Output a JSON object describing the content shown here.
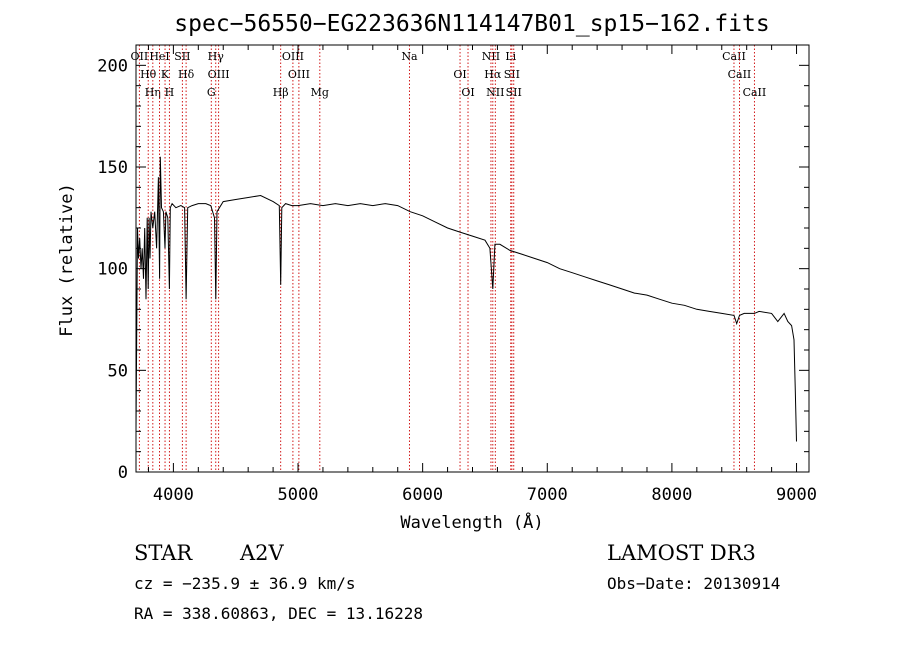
{
  "chart_data": {
    "type": "line",
    "title": "spec−56550−EG223636N114147B01_sp15−162.fits",
    "xlabel": "Wavelength (Å)",
    "ylabel": "Flux (relative)",
    "xlim": [
      3700,
      9100
    ],
    "ylim": [
      0,
      210
    ],
    "xticks": [
      4000,
      5000,
      6000,
      7000,
      8000,
      9000
    ],
    "yticks": [
      0,
      50,
      100,
      150,
      200
    ],
    "grid": false,
    "series": [
      {
        "color": "#000000",
        "x": [
          3700,
          3705,
          3712,
          3720,
          3730,
          3740,
          3750,
          3760,
          3770,
          3780,
          3790,
          3798,
          3805,
          3812,
          3820,
          3835,
          3850,
          3865,
          3880,
          3889,
          3895,
          3905,
          3920,
          3933,
          3940,
          3955,
          3968,
          3975,
          3990,
          4020,
          4060,
          4090,
          4102,
          4115,
          4150,
          4200,
          4260,
          4300,
          4330,
          4340,
          4350,
          4400,
          4500,
          4600,
          4700,
          4800,
          4850,
          4861,
          4870,
          4900,
          4950,
          5000,
          5100,
          5200,
          5300,
          5400,
          5500,
          5600,
          5700,
          5800,
          5900,
          6000,
          6100,
          6200,
          6300,
          6400,
          6500,
          6540,
          6563,
          6580,
          6620,
          6700,
          6800,
          6900,
          7000,
          7100,
          7200,
          7300,
          7400,
          7500,
          7600,
          7700,
          7800,
          7900,
          8000,
          8100,
          8200,
          8300,
          8400,
          8498,
          8520,
          8542,
          8580,
          8662,
          8700,
          8800,
          8850,
          8900,
          8930,
          8960,
          8980,
          8990,
          9000
        ],
        "y": [
          20,
          60,
          120,
          105,
          115,
          100,
          110,
          95,
          120,
          85,
          125,
          90,
          125,
          105,
          128,
          120,
          128,
          110,
          145,
          95,
          155,
          130,
          128,
          110,
          128,
          125,
          90,
          130,
          132,
          130,
          131,
          130,
          85,
          130,
          131,
          132,
          132,
          131,
          125,
          85,
          128,
          133,
          134,
          135,
          136,
          133,
          131,
          92,
          130,
          132,
          131,
          131,
          132,
          131,
          132,
          131,
          132,
          131,
          132,
          131,
          128,
          126,
          123,
          120,
          118,
          116,
          114,
          110,
          90,
          112,
          112,
          109,
          107,
          105,
          103,
          100,
          98,
          96,
          94,
          92,
          90,
          88,
          87,
          85,
          83,
          82,
          80,
          79,
          78,
          77,
          73,
          77,
          78,
          78,
          79,
          78,
          74,
          78,
          74,
          72,
          65,
          40,
          15
        ]
      }
    ],
    "line_ids": [
      {
        "label": "OII",
        "x": 3727
      },
      {
        "label": "Hθ",
        "x": 3798
      },
      {
        "label": "Hη",
        "x": 3835
      },
      {
        "label": "HeI",
        "x": 3889
      },
      {
        "label": "K",
        "x": 3933
      },
      {
        "label": "H",
        "x": 3968
      },
      {
        "label": "SII",
        "x": 4072
      },
      {
        "label": "Hδ",
        "x": 4102
      },
      {
        "label": "G",
        "x": 4304
      },
      {
        "label": "Hγ",
        "x": 4340
      },
      {
        "label": "OIII",
        "x": 4363
      },
      {
        "label": "Hβ",
        "x": 4861
      },
      {
        "label": "OIII",
        "x": 4959
      },
      {
        "label": "OIII",
        "x": 5007
      },
      {
        "label": "Mg",
        "x": 5175
      },
      {
        "label": "Na",
        "x": 5894
      },
      {
        "label": "OI",
        "x": 6300
      },
      {
        "label": "OI",
        "x": 6364
      },
      {
        "label": "NII",
        "x": 6548
      },
      {
        "label": "Hα",
        "x": 6563
      },
      {
        "label": "NII",
        "x": 6583
      },
      {
        "label": "Li",
        "x": 6707
      },
      {
        "label": "SII",
        "x": 6716
      },
      {
        "label": "SII",
        "x": 6731
      },
      {
        "label": "CaII",
        "x": 8498
      },
      {
        "label": "CaII",
        "x": 8542
      },
      {
        "label": "CaII",
        "x": 8662
      }
    ],
    "line_id_color": "#cc0000"
  },
  "info": {
    "object_class": "STAR",
    "subclass": "A2V",
    "survey": "LAMOST DR3",
    "cz": "cz = −235.9 ± 36.9 km/s",
    "obs_date": "Obs−Date: 20130914",
    "coords": "RA = 338.60863, DEC =  13.16228"
  }
}
